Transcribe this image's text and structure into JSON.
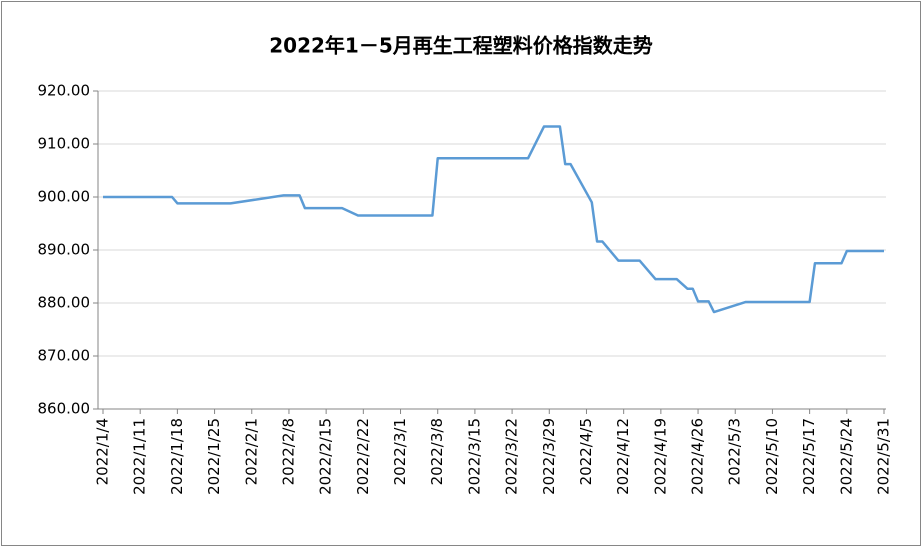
{
  "chart_data": {
    "type": "line",
    "title": "2022年1－5月再生工程塑料价格指数走势",
    "x": [
      "2022/1/4",
      "2022/1/17",
      "2022/1/18",
      "2022/1/28",
      "2022/2/7",
      "2022/2/10",
      "2022/2/11",
      "2022/2/18",
      "2022/2/21",
      "2022/3/7",
      "2022/3/8",
      "2022/3/25",
      "2022/3/28",
      "2022/3/31",
      "2022/4/1",
      "2022/4/2",
      "2022/4/6",
      "2022/4/7",
      "2022/4/8",
      "2022/4/11",
      "2022/4/15",
      "2022/4/18",
      "2022/4/22",
      "2022/4/24",
      "2022/4/25",
      "2022/4/26",
      "2022/4/28",
      "2022/4/29",
      "2022/5/5",
      "2022/5/17",
      "2022/5/18",
      "2022/5/23",
      "2022/5/24",
      "2022/5/31"
    ],
    "series": [
      {
        "name": "再生工程塑料价格指数",
        "color": "#5b9bd5",
        "values": [
          900.0,
          900.0,
          898.8,
          898.8,
          900.3,
          900.3,
          897.9,
          897.9,
          896.5,
          896.5,
          907.3,
          907.3,
          913.3,
          913.3,
          906.2,
          906.2,
          899.0,
          891.6,
          891.6,
          888.0,
          888.0,
          884.5,
          884.5,
          882.7,
          882.7,
          880.3,
          880.3,
          878.3,
          880.2,
          880.2,
          887.5,
          887.5,
          889.8,
          889.8
        ]
      }
    ],
    "xlim": [
      "2022/1/4",
      "2022/5/31"
    ],
    "xticks": [
      "2022/1/4",
      "2022/1/11",
      "2022/1/18",
      "2022/1/25",
      "2022/2/1",
      "2022/2/8",
      "2022/2/15",
      "2022/2/22",
      "2022/3/1",
      "2022/3/8",
      "2022/3/15",
      "2022/3/22",
      "2022/3/29",
      "2022/4/5",
      "2022/4/12",
      "2022/4/19",
      "2022/4/26",
      "2022/5/3",
      "2022/5/10",
      "2022/5/17",
      "2022/5/24",
      "2022/5/31"
    ],
    "ylim": [
      860,
      920
    ],
    "yticks": [
      {
        "value": 860,
        "label": "860.00"
      },
      {
        "value": 870,
        "label": "870.00"
      },
      {
        "value": 880,
        "label": "880.00"
      },
      {
        "value": 890,
        "label": "890.00"
      },
      {
        "value": 900,
        "label": "900.00"
      },
      {
        "value": 910,
        "label": "910.00"
      },
      {
        "value": 920,
        "label": "920.00"
      }
    ],
    "grid": true
  }
}
